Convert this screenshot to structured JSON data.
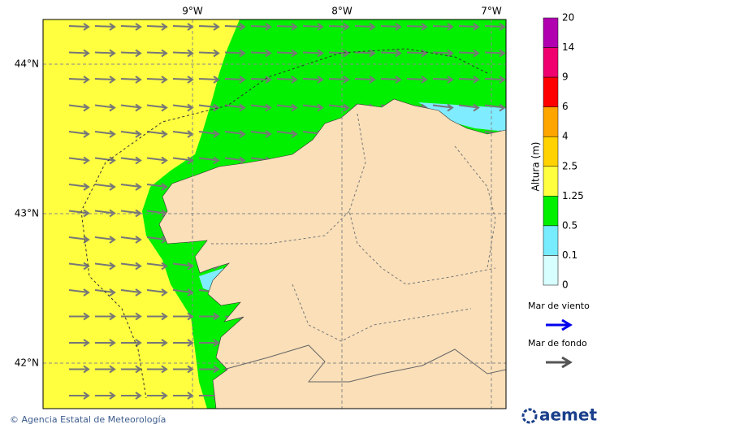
{
  "map": {
    "lon_labels": [
      "9°W",
      "8°W",
      "7°W"
    ],
    "lat_labels": [
      "44°N",
      "43°N",
      "42°N"
    ]
  },
  "colorbar": {
    "title": "Altura (m)",
    "labels": [
      "20",
      "14",
      "9",
      "6",
      "4",
      "2.5",
      "1.25",
      "0.5",
      "0.1",
      "0"
    ],
    "colors": [
      "#b000b0",
      "#f0006e",
      "#ff0000",
      "#ffa500",
      "#ffd200",
      "#ffff40",
      "#00f000",
      "#78ecff",
      "#d8ffff"
    ]
  },
  "legend": [
    {
      "label": "Mar de viento",
      "color": "#0000ee"
    },
    {
      "label": "Mar de fondo",
      "color": "#555555"
    }
  ],
  "footer": {
    "credit": "© Agencia Estatal de Meteorología",
    "logo": "aemet"
  }
}
